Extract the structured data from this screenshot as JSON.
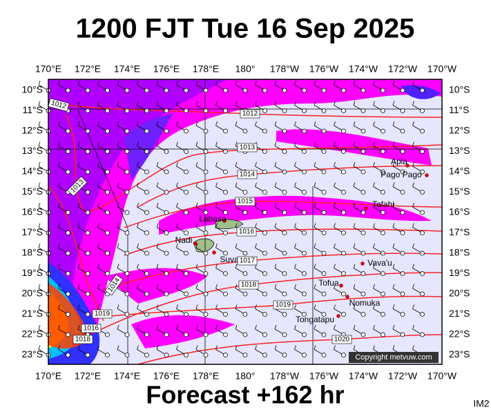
{
  "header": {
    "title": "1200 FJT Tue 16 Sep 2025"
  },
  "longitude_labels": [
    "170°E",
    "172°E",
    "174°E",
    "176°E",
    "178°E",
    "180°",
    "178°W",
    "176°W",
    "174°W",
    "172°W",
    "170°W"
  ],
  "latitude_labels": [
    "10°S",
    "11°S",
    "12°S",
    "13°S",
    "14°S",
    "15°S",
    "16°S",
    "17°S",
    "18°S",
    "19°S",
    "20°S",
    "21°S",
    "22°S",
    "23°S"
  ],
  "places": [
    "Apia",
    "Pago Pago",
    "Tafahi",
    "Labasa",
    "Nadi",
    "Suva",
    "Vava'u",
    "Tofua",
    "Nomuka",
    "Tongatapu"
  ],
  "isobar_labels": [
    "1012",
    "1012",
    "1013",
    "1013",
    "1014",
    "1014",
    "1015",
    "1016",
    "1016",
    "1017",
    "1018",
    "1018",
    "1019",
    "1019",
    "1020"
  ],
  "copyright": "Copyright metvuw.com",
  "footer": {
    "forecast": "Forecast +162 hr",
    "code": "IM2"
  }
}
